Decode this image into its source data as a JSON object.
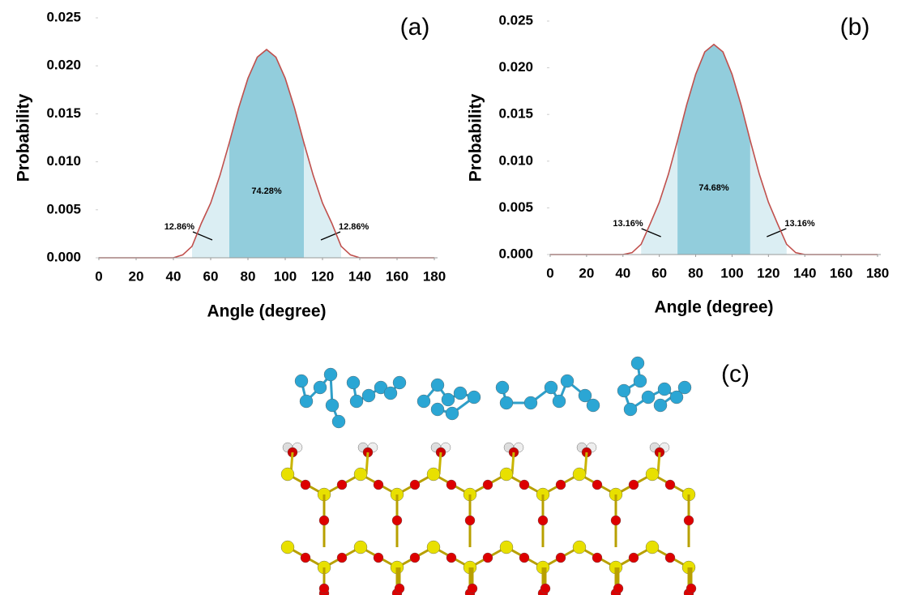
{
  "chart_data": [
    {
      "type": "line",
      "panel_label": "(a)",
      "x_label": "Angle (degree)",
      "y_label": "Probability",
      "x": [
        0,
        5,
        10,
        15,
        20,
        25,
        30,
        35,
        40,
        45,
        50,
        55,
        60,
        65,
        70,
        75,
        80,
        85,
        90,
        95,
        100,
        105,
        110,
        115,
        120,
        125,
        130,
        135,
        140,
        145,
        150,
        155,
        160,
        165,
        170,
        175,
        180
      ],
      "series": [
        {
          "color": "#c0504d",
          "values": [
            0,
            0,
            0,
            0,
            0,
            0,
            0,
            0,
            0,
            0.0003,
            0.0012,
            0.0036,
            0.0057,
            0.0086,
            0.012,
            0.0156,
            0.0187,
            0.0209,
            0.0217,
            0.0209,
            0.0187,
            0.0156,
            0.012,
            0.0086,
            0.0057,
            0.0036,
            0.0012,
            0.0003,
            0,
            0,
            0,
            0,
            0,
            0,
            0,
            0,
            0
          ]
        }
      ],
      "regions": [
        {
          "x": [
            50,
            70
          ],
          "label": "12.86%",
          "color": "#dbeef3"
        },
        {
          "x": [
            70,
            110
          ],
          "label": "74.28%",
          "color": "#92cddc"
        },
        {
          "x": [
            110,
            130
          ],
          "label": "12.86%",
          "color": "#dbeef3"
        }
      ],
      "xlim": [
        0,
        180
      ],
      "xticks": [
        0,
        20,
        40,
        60,
        80,
        100,
        120,
        140,
        160,
        180
      ],
      "ylim": [
        0,
        0.025
      ],
      "yticks": [
        {
          "value": 0,
          "label": "0.000"
        },
        {
          "value": 0.005,
          "label": "0.005"
        },
        {
          "value": 0.01,
          "label": "0.010"
        },
        {
          "value": 0.015,
          "label": "0.015"
        },
        {
          "value": 0.02,
          "label": "0.020"
        },
        {
          "value": 0.025,
          "label": "0.025"
        }
      ]
    },
    {
      "type": "line",
      "panel_label": "(b)",
      "x_label": "Angle (degree)",
      "y_label": "Probability",
      "x": [
        0,
        5,
        10,
        15,
        20,
        25,
        30,
        35,
        40,
        45,
        50,
        55,
        60,
        65,
        70,
        75,
        80,
        85,
        90,
        95,
        100,
        105,
        110,
        115,
        120,
        125,
        130,
        135,
        140,
        145,
        150,
        155,
        160,
        165,
        170,
        175,
        180
      ],
      "series": [
        {
          "color": "#c0504d",
          "values": [
            0,
            0,
            0,
            0,
            0,
            0,
            0,
            0,
            0,
            0.0002,
            0.0011,
            0.0033,
            0.0056,
            0.0086,
            0.0122,
            0.016,
            0.0193,
            0.0217,
            0.0225,
            0.0217,
            0.0193,
            0.016,
            0.0122,
            0.0086,
            0.0056,
            0.0033,
            0.0011,
            0.0002,
            0,
            0,
            0,
            0,
            0,
            0,
            0,
            0,
            0
          ]
        }
      ],
      "regions": [
        {
          "x": [
            50,
            70
          ],
          "label": "13.16%",
          "color": "#dbeef3"
        },
        {
          "x": [
            70,
            110
          ],
          "label": "74.68%",
          "color": "#92cddc"
        },
        {
          "x": [
            110,
            130
          ],
          "label": "13.16%",
          "color": "#dbeef3"
        }
      ],
      "xlim": [
        0,
        180
      ],
      "xticks": [
        0,
        20,
        40,
        60,
        80,
        100,
        120,
        140,
        160,
        180
      ],
      "ylim": [
        0,
        0.025
      ],
      "yticks": [
        {
          "value": 0,
          "label": "0.000"
        },
        {
          "value": 0.005,
          "label": "0.005"
        },
        {
          "value": 0.01,
          "label": "0.010"
        },
        {
          "value": 0.015,
          "label": "0.015"
        },
        {
          "value": 0.02,
          "label": "0.020"
        },
        {
          "value": 0.025,
          "label": "0.025"
        }
      ]
    }
  ],
  "panel_c_label": "(c)"
}
